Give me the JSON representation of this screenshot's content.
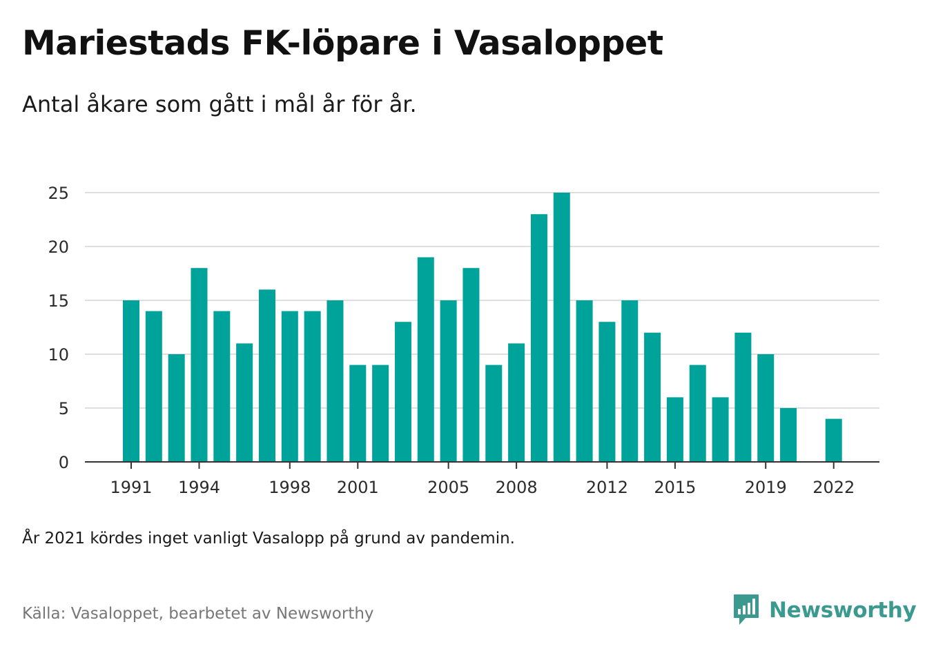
{
  "title": "Mariestads FK-löpare i Vasaloppet",
  "subtitle": "Antal åkare som gått i mål år för år.",
  "note": "År 2021 kördes inget vanligt Vasalopp på grund av pandemin.",
  "source": "Källa: Vasaloppet, bearbetet av Newsworthy",
  "brand": {
    "name": "Newsworthy",
    "icon": "newsworthy-logo-icon",
    "color": "#3a9a8f"
  },
  "chart_data": {
    "type": "bar",
    "categories": [
      1991,
      1992,
      1993,
      1994,
      1995,
      1996,
      1997,
      1998,
      1999,
      2000,
      2001,
      2002,
      2003,
      2004,
      2005,
      2006,
      2007,
      2008,
      2009,
      2010,
      2011,
      2012,
      2013,
      2014,
      2015,
      2016,
      2017,
      2018,
      2019,
      2020,
      2021,
      2022
    ],
    "values": [
      15,
      14,
      10,
      18,
      14,
      11,
      16,
      14,
      14,
      15,
      9,
      9,
      13,
      19,
      15,
      18,
      9,
      11,
      23,
      25,
      15,
      13,
      15,
      12,
      6,
      9,
      6,
      12,
      10,
      5,
      null,
      4
    ],
    "x_tick_labels": [
      "1991",
      "1994",
      "1998",
      "2001",
      "2005",
      "2008",
      "2012",
      "2015",
      "2019",
      "2022"
    ],
    "y_ticks": [
      0,
      5,
      10,
      15,
      20,
      25
    ],
    "ylim": [
      0,
      25
    ],
    "xlabel": "",
    "ylabel": "",
    "bar_color": "#00a39a",
    "grid": true
  }
}
